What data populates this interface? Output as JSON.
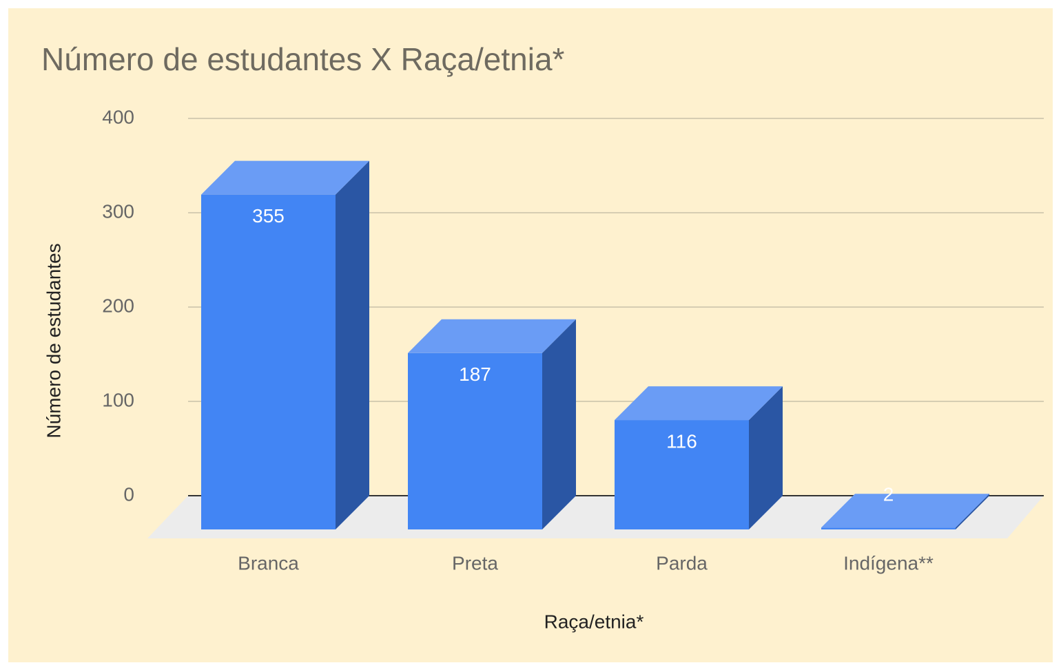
{
  "chart_data": {
    "type": "bar3d",
    "title": "Número de estudantes X Raça/etnia*",
    "x_label": "Raça/etnia*",
    "y_label": "Número de estudantes",
    "categories": [
      "Branca",
      "Preta",
      "Parda",
      "Indígena**"
    ],
    "values": [
      355,
      187,
      116,
      2
    ],
    "color": "#4285f4",
    "ylim": [
      0,
      400
    ],
    "yticks": [
      0,
      100,
      200,
      300,
      400
    ],
    "grid": true
  }
}
